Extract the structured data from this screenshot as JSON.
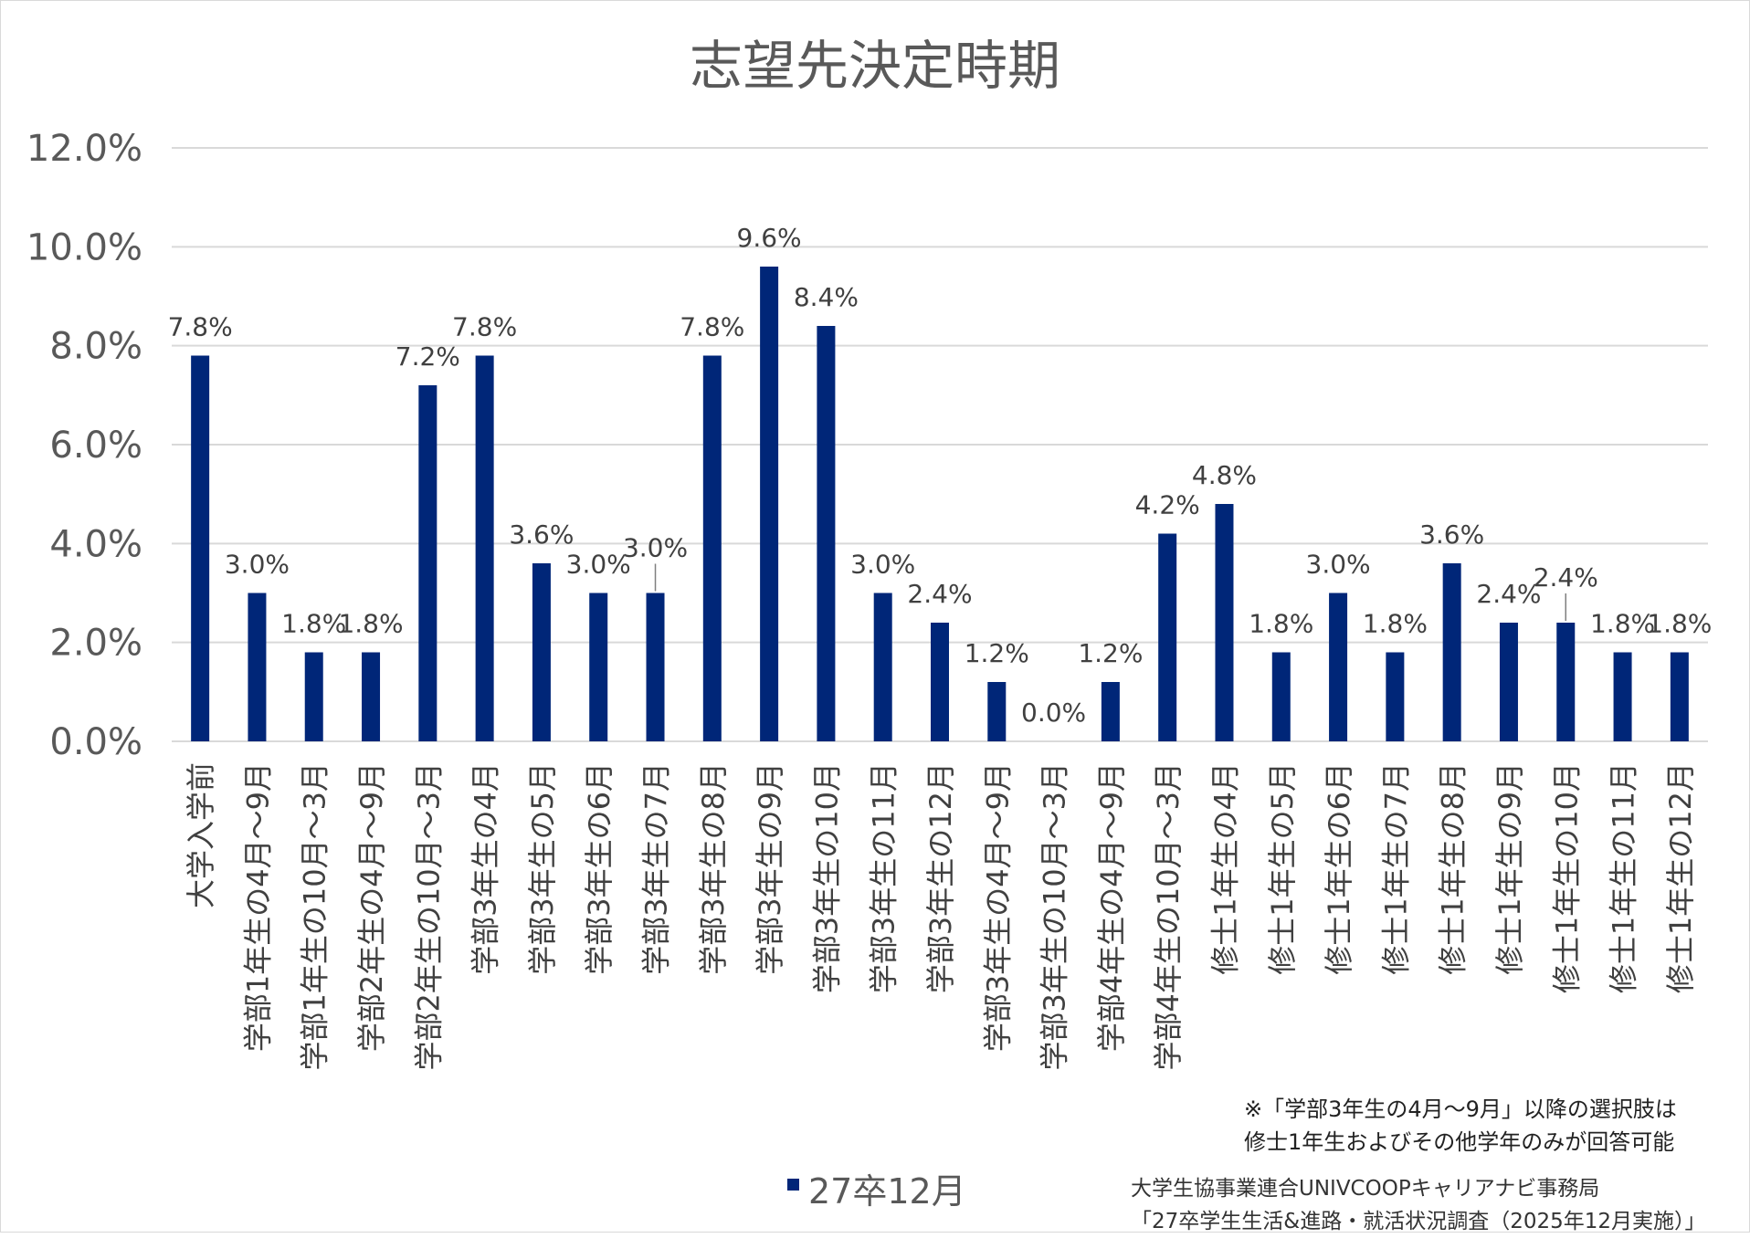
{
  "chart_data": {
    "type": "bar",
    "title": "志望先決定時期",
    "categories": [
      "大学入学前",
      "学部1年生の4月～9月",
      "学部1年生の10月～3月",
      "学部2年生の4月～9月",
      "学部2年生の10月～3月",
      "学部3年生の4月",
      "学部3年生の5月",
      "学部3年生の6月",
      "学部3年生の7月",
      "学部3年生の8月",
      "学部3年生の9月",
      "学部3年生の10月",
      "学部3年生の11月",
      "学部3年生の12月",
      "学部3年生の4月～9月",
      "学部3年生の10月～3月",
      "学部4年生の4月～9月",
      "学部4年生の10月～3月",
      "修士1年生の4月",
      "修士1年生の5月",
      "修士1年生の6月",
      "修士1年生の7月",
      "修士1年生の8月",
      "修士1年生の9月",
      "修士1年生の10月",
      "修士1年生の11月",
      "修士1年生の12月"
    ],
    "series": [
      {
        "name": "27卒12月",
        "color": "#002678",
        "values": [
          7.8,
          3.0,
          1.8,
          1.8,
          7.2,
          7.8,
          3.6,
          3.0,
          3.0,
          7.8,
          9.6,
          8.4,
          3.0,
          2.4,
          1.2,
          0.0,
          1.2,
          4.2,
          4.8,
          1.8,
          3.0,
          1.8,
          3.6,
          2.4,
          2.4,
          1.8,
          1.8
        ]
      }
    ],
    "data_labels": [
      "7.8%",
      "3.0%",
      "1.8%",
      "1.8%",
      "7.2%",
      "7.8%",
      "3.6%",
      "3.0%",
      "3.0%",
      "7.8%",
      "9.6%",
      "8.4%",
      "3.0%",
      "2.4%",
      "1.2%",
      "0.0%",
      "1.2%",
      "4.2%",
      "4.8%",
      "1.8%",
      "3.0%",
      "1.8%",
      "3.6%",
      "2.4%",
      "2.4%",
      "1.8%",
      "1.8%"
    ],
    "y_ticks": [
      0,
      2,
      4,
      6,
      8,
      10,
      12
    ],
    "y_tick_labels": [
      "0.0%",
      "2.0%",
      "4.0%",
      "6.0%",
      "8.0%",
      "10.0%",
      "12.0%"
    ],
    "ylim": [
      0,
      12
    ],
    "grid": true,
    "xlabel": "",
    "ylabel": "",
    "legend_position": "bottom"
  },
  "notes": {
    "eligibility_line1": "※「学部3年生の4月～9月」以降の選択肢は",
    "eligibility_line2": "修士1年生およびその他学年のみが回答可能",
    "source_line1": "大学生協事業連合UNIVCOOPキャリアナビ事務局",
    "source_line2": "「27卒学生生活&進路・就活状況調査（2025年12月実施）」"
  },
  "colors": {
    "bar": "#002678",
    "grid": "#d9d9d9",
    "text": "#595959"
  }
}
